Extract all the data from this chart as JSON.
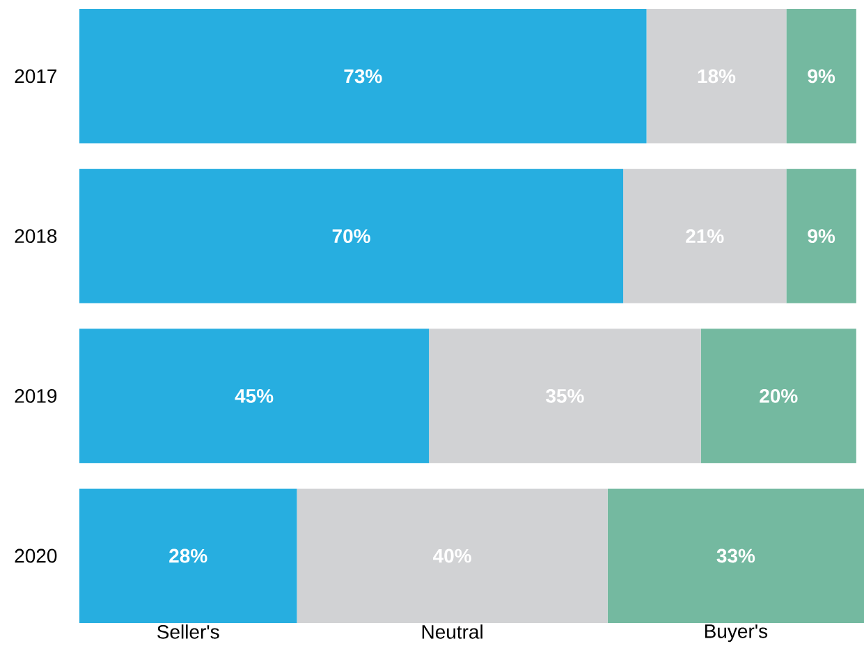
{
  "chart_data": {
    "type": "bar",
    "orientation": "horizontal",
    "stacked": true,
    "categories": [
      "2017",
      "2018",
      "2019",
      "2020"
    ],
    "series": [
      {
        "name": "Seller's",
        "color": "#27aee0",
        "values": [
          73,
          70,
          45,
          28
        ],
        "value_labels": [
          "73%",
          "70%",
          "45%",
          "28%"
        ]
      },
      {
        "name": "Neutral",
        "color": "#d1d2d4",
        "values": [
          18,
          21,
          35,
          40
        ],
        "value_labels": [
          "18%",
          "21%",
          "35%",
          "40%"
        ]
      },
      {
        "name": "Buyer's",
        "color": "#74b9a0",
        "values": [
          9,
          9,
          20,
          33
        ],
        "value_labels": [
          "9%",
          "9%",
          "20%",
          "33%"
        ]
      }
    ]
  }
}
